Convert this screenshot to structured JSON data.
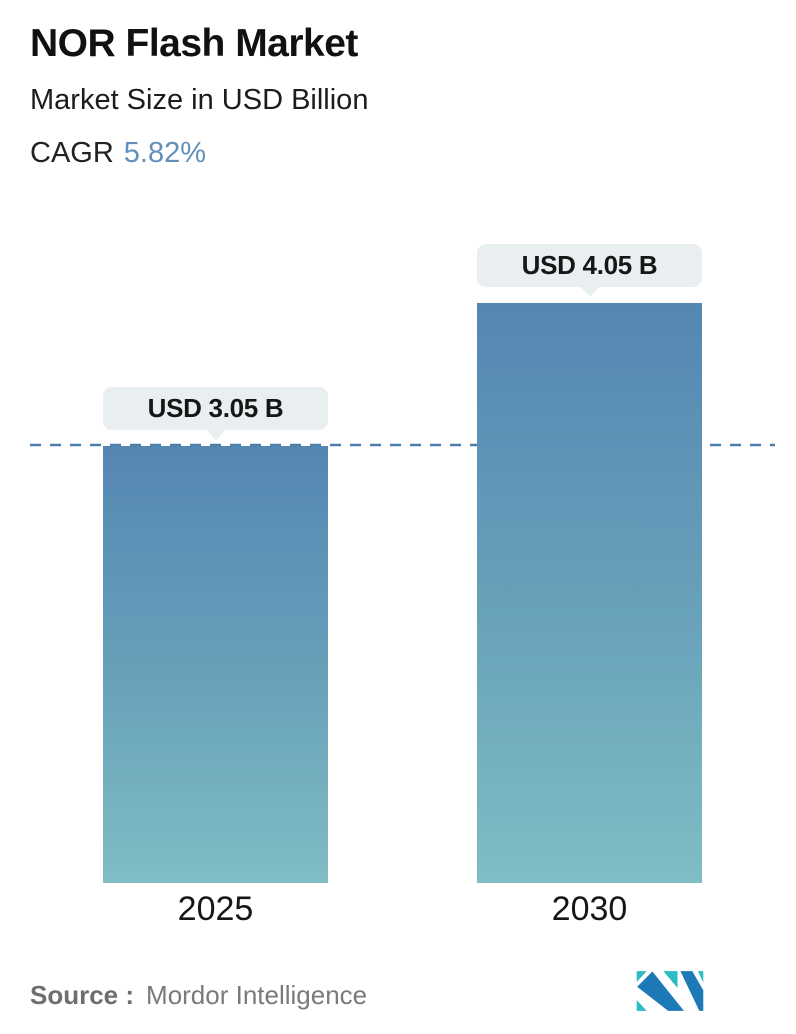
{
  "header": {
    "title": "NOR Flash Market",
    "subtitle": "Market Size in USD Billion",
    "cagr_label": "CAGR",
    "cagr_value": "5.82%"
  },
  "chart_data": {
    "type": "bar",
    "title": "NOR Flash Market",
    "ylabel": "Market Size in USD Billion",
    "categories": [
      "2025",
      "2030"
    ],
    "values": [
      3.05,
      4.05
    ],
    "value_labels": [
      "USD 3.05 B",
      "USD 4.05 B"
    ],
    "cagr_percent": 5.82,
    "baseline_value": 3.05,
    "ylim": [
      0,
      4.05
    ],
    "grid": "off",
    "legend": "none"
  },
  "footer": {
    "source_label": "Source :",
    "source_value": "Mordor Intelligence",
    "logo": "mordor-intelligence-logo"
  },
  "colors": {
    "bar_gradient_top": "#5586b2",
    "bar_gradient_bottom": "#80bdc4",
    "dashed_line": "#4b7dad",
    "bubble_background": "#e9eef0",
    "cagr_value_text": "#6190bd",
    "title_text": "#111111",
    "year_label_text": "#161616",
    "source_text": "#7a7a7a",
    "logo_blue": "#1e7ab7",
    "logo_teal": "#2ebcc4"
  }
}
